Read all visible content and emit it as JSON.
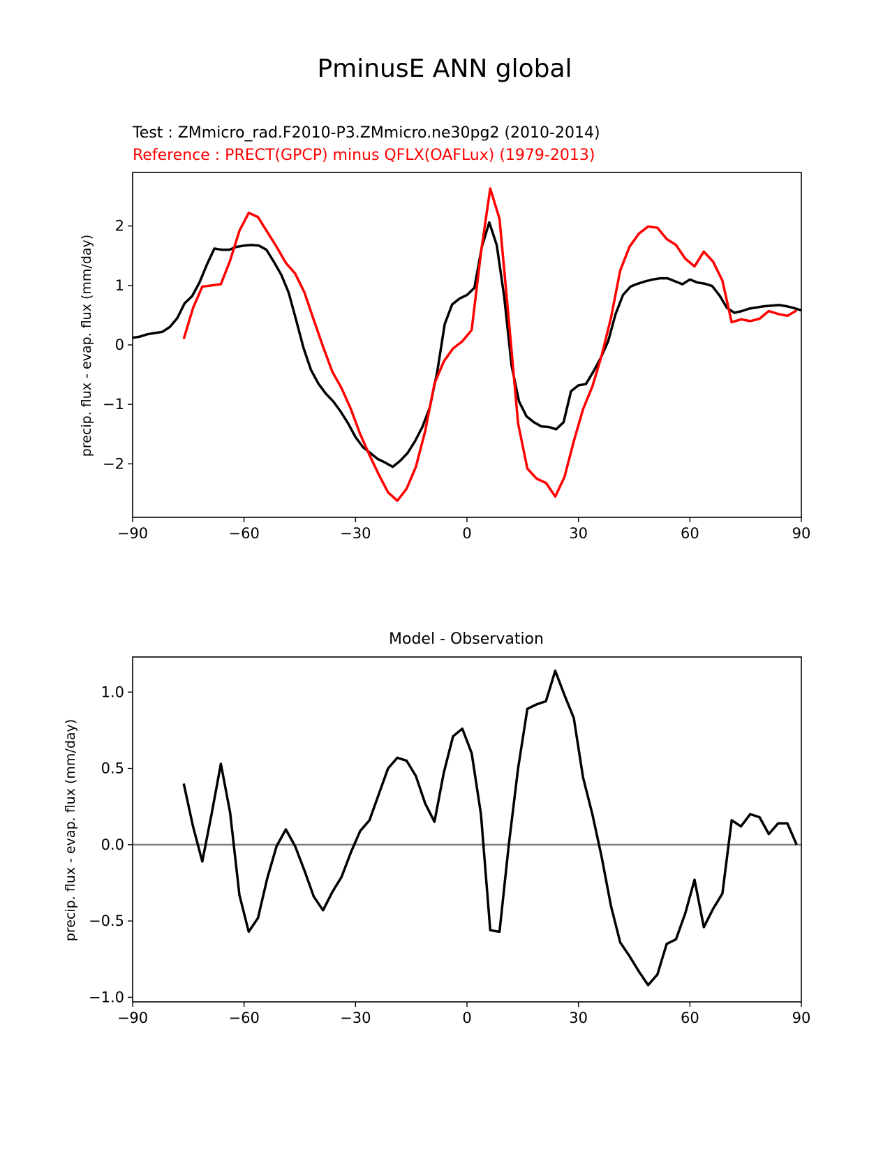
{
  "figure_title": "PminusE ANN global",
  "chart_data": [
    {
      "type": "line",
      "subtitle_test": "Test : ZMmicro_rad.F2010-P3.ZMmicro.ne30pg2 (2010-2014)",
      "subtitle_ref": "Reference : PRECT(GPCP) minus QFLX(OAFLux) (1979-2013)",
      "title": "",
      "xlabel": "",
      "ylabel": "precip. flux - evap. flux (mm/day)",
      "xlim": [
        -90,
        90
      ],
      "ylim": [
        -2.9,
        2.9
      ],
      "xticks": [
        -90,
        -60,
        -30,
        0,
        30,
        60,
        90
      ],
      "xtick_labels": [
        "−90",
        "−60",
        "−30",
        "0",
        "30",
        "60",
        "90"
      ],
      "yticks": [
        -2,
        -1,
        0,
        1,
        2
      ],
      "ytick_labels": [
        "−2",
        "−1",
        "0",
        "1",
        "2"
      ],
      "series": [
        {
          "name": "Test",
          "color": "#000000",
          "x": [
            -90,
            -88,
            -86,
            -84,
            -82,
            -80,
            -78,
            -76,
            -74,
            -72,
            -70,
            -68,
            -66,
            -64,
            -62,
            -60,
            -58,
            -56,
            -54,
            -52,
            -50,
            -48,
            -46,
            -44,
            -42,
            -40,
            -38,
            -36,
            -34,
            -32,
            -30,
            -28,
            -26,
            -24,
            -22,
            -20,
            -18,
            -16,
            -14,
            -12,
            -10,
            -8,
            -6,
            -4,
            -2,
            0,
            2,
            4,
            6,
            8,
            10,
            12,
            14,
            16,
            18,
            20,
            22,
            24,
            26,
            28,
            30,
            32,
            34,
            36,
            38,
            40,
            42,
            44,
            46,
            48,
            50,
            52,
            54,
            56,
            58,
            60,
            62,
            64,
            66,
            68,
            70,
            72,
            74,
            76,
            78,
            80,
            82,
            84,
            86,
            88,
            90
          ],
          "y": [
            0.12,
            0.14,
            0.18,
            0.2,
            0.22,
            0.3,
            0.45,
            0.7,
            0.82,
            1.05,
            1.35,
            1.62,
            1.6,
            1.6,
            1.65,
            1.67,
            1.68,
            1.67,
            1.6,
            1.4,
            1.18,
            0.88,
            0.42,
            -0.05,
            -0.42,
            -0.65,
            -0.82,
            -0.95,
            -1.12,
            -1.32,
            -1.55,
            -1.72,
            -1.82,
            -1.92,
            -1.98,
            -2.05,
            -1.95,
            -1.82,
            -1.62,
            -1.38,
            -1.05,
            -0.45,
            0.35,
            0.68,
            0.78,
            0.84,
            0.96,
            1.65,
            2.06,
            1.68,
            0.82,
            -0.35,
            -0.95,
            -1.2,
            -1.3,
            -1.37,
            -1.38,
            -1.42,
            -1.3,
            -0.78,
            -0.68,
            -0.66,
            -0.45,
            -0.22,
            0.06,
            0.52,
            0.84,
            0.98,
            1.03,
            1.07,
            1.1,
            1.12,
            1.12,
            1.07,
            1.02,
            1.1,
            1.05,
            1.03,
            0.99,
            0.83,
            0.62,
            0.54,
            0.57,
            0.61,
            0.63,
            0.65,
            0.66,
            0.67,
            0.65,
            0.62,
            0.58
          ]
        },
        {
          "name": "Reference",
          "color": "#ff0000",
          "x": [
            -76.25,
            -73.75,
            -71.25,
            -68.75,
            -66.25,
            -63.75,
            -61.25,
            -58.75,
            -56.25,
            -53.75,
            -51.25,
            -48.75,
            -46.25,
            -43.75,
            -41.25,
            -38.75,
            -36.25,
            -33.75,
            -31.25,
            -28.75,
            -26.25,
            -23.75,
            -21.25,
            -18.75,
            -16.25,
            -13.75,
            -11.25,
            -8.75,
            -6.25,
            -3.75,
            -1.25,
            1.25,
            3.75,
            6.25,
            8.75,
            11.25,
            13.75,
            16.25,
            18.75,
            21.25,
            23.75,
            26.25,
            28.75,
            31.25,
            33.75,
            36.25,
            38.75,
            41.25,
            43.75,
            46.25,
            48.75,
            51.25,
            53.75,
            56.25,
            58.75,
            61.25,
            63.75,
            66.25,
            68.75,
            71.25,
            73.75,
            76.25,
            78.75,
            81.25,
            83.75,
            86.25,
            88.75
          ],
          "y": [
            0.1,
            0.62,
            0.98,
            1.0,
            1.02,
            1.42,
            1.92,
            2.22,
            2.15,
            1.9,
            1.65,
            1.38,
            1.2,
            0.88,
            0.42,
            -0.03,
            -0.45,
            -0.73,
            -1.08,
            -1.5,
            -1.85,
            -2.18,
            -2.48,
            -2.62,
            -2.42,
            -2.05,
            -1.45,
            -0.65,
            -0.28,
            -0.06,
            0.06,
            0.25,
            1.55,
            2.63,
            2.12,
            0.42,
            -1.32,
            -2.08,
            -2.25,
            -2.32,
            -2.55,
            -2.22,
            -1.62,
            -1.08,
            -0.7,
            -0.18,
            0.45,
            1.25,
            1.65,
            1.87,
            1.99,
            1.97,
            1.78,
            1.68,
            1.45,
            1.32,
            1.57,
            1.4,
            1.08,
            0.38,
            0.43,
            0.4,
            0.44,
            0.57,
            0.52,
            0.49,
            0.58
          ]
        }
      ]
    },
    {
      "type": "line",
      "title": "Model - Observation",
      "xlabel": "",
      "ylabel": "precip. flux - evap. flux (mm/day)",
      "xlim": [
        -90,
        90
      ],
      "ylim": [
        -1.03,
        1.23
      ],
      "xticks": [
        -90,
        -60,
        -30,
        0,
        30,
        60,
        90
      ],
      "xtick_labels": [
        "−90",
        "−60",
        "−30",
        "0",
        "30",
        "60",
        "90"
      ],
      "yticks": [
        -1.0,
        -0.5,
        0.0,
        0.5,
        1.0
      ],
      "ytick_labels": [
        "−1.0",
        "−0.5",
        "0.0",
        "0.5",
        "1.0"
      ],
      "zero_line_color": "#808080",
      "series": [
        {
          "name": "Model - Observation",
          "color": "#000000",
          "x": [
            -76.25,
            -73.75,
            -71.25,
            -68.75,
            -66.25,
            -63.75,
            -61.25,
            -58.75,
            -56.25,
            -53.75,
            -51.25,
            -48.75,
            -46.25,
            -43.75,
            -41.25,
            -38.75,
            -36.25,
            -33.75,
            -31.25,
            -28.75,
            -26.25,
            -23.75,
            -21.25,
            -18.75,
            -16.25,
            -13.75,
            -11.25,
            -8.75,
            -6.25,
            -3.75,
            -1.25,
            1.25,
            3.75,
            6.25,
            8.75,
            11.25,
            13.75,
            16.25,
            18.75,
            21.25,
            23.75,
            26.25,
            28.75,
            31.25,
            33.75,
            36.25,
            38.75,
            41.25,
            43.75,
            46.25,
            48.75,
            51.25,
            53.75,
            56.25,
            58.75,
            61.25,
            63.75,
            66.25,
            68.75,
            71.25,
            73.75,
            76.25,
            78.75,
            81.25,
            83.75,
            86.25,
            88.75
          ],
          "y": [
            0.4,
            0.12,
            -0.11,
            0.2,
            0.53,
            0.21,
            -0.33,
            -0.57,
            -0.48,
            -0.22,
            -0.01,
            0.1,
            -0.01,
            -0.17,
            -0.34,
            -0.43,
            -0.31,
            -0.21,
            -0.05,
            0.09,
            0.16,
            0.33,
            0.5,
            0.57,
            0.55,
            0.45,
            0.27,
            0.15,
            0.47,
            0.71,
            0.76,
            0.6,
            0.2,
            -0.56,
            -0.57,
            0.0,
            0.5,
            0.89,
            0.92,
            0.94,
            1.14,
            0.98,
            0.83,
            0.44,
            0.2,
            -0.08,
            -0.4,
            -0.64,
            -0.73,
            -0.83,
            -0.92,
            -0.85,
            -0.65,
            -0.62,
            -0.45,
            -0.23,
            -0.54,
            -0.42,
            -0.32,
            0.16,
            0.12,
            0.2,
            0.18,
            0.07,
            0.14,
            0.14,
            0.0
          ]
        }
      ]
    }
  ]
}
